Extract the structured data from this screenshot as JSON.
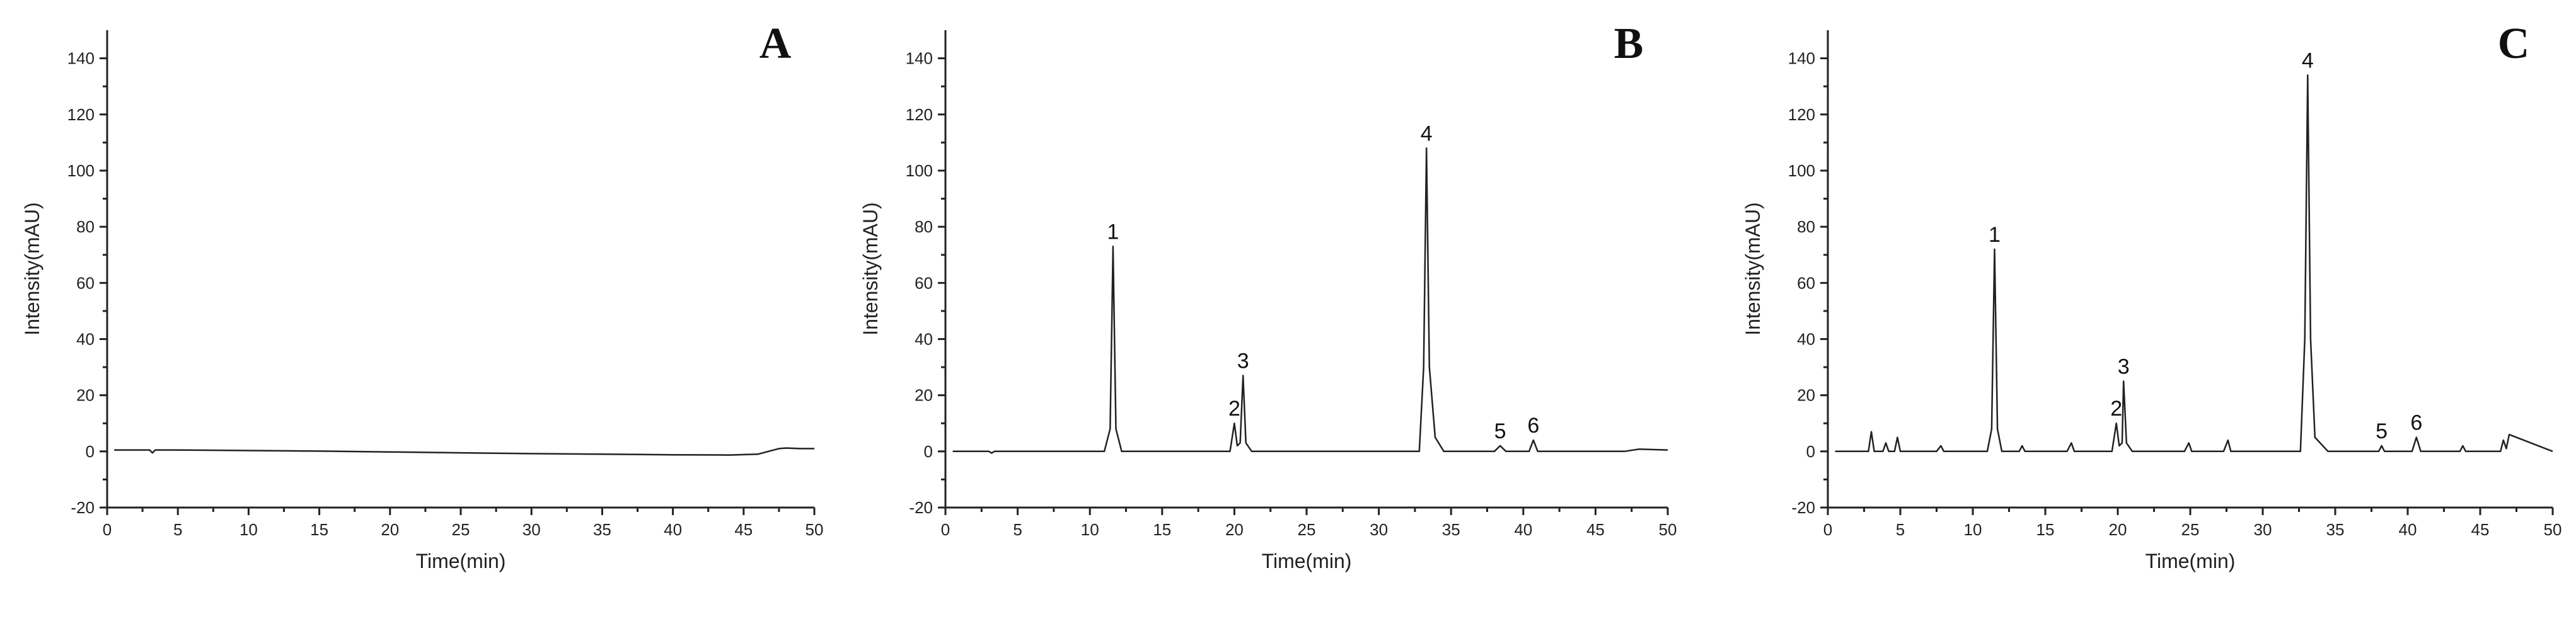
{
  "chart_data": [
    {
      "type": "line",
      "panel_label": "A",
      "xlabel": "Time(min)",
      "ylabel": "Intensity(mAU)",
      "xlim": [
        0,
        50
      ],
      "ylim": [
        -20,
        150
      ],
      "xticks": [
        0,
        5,
        10,
        15,
        20,
        25,
        30,
        35,
        40,
        45,
        50
      ],
      "yticks": [
        -20,
        0,
        20,
        40,
        60,
        80,
        100,
        120,
        140
      ],
      "grid": false,
      "peak_labels": [],
      "series": [
        {
          "x": [
            0.5,
            3.0,
            3.2,
            3.4,
            5,
            10,
            15,
            20,
            25,
            30,
            35,
            40,
            44,
            46,
            47.5,
            48,
            49,
            50
          ],
          "values": [
            0.5,
            0.5,
            -0.5,
            0.5,
            0.5,
            0.3,
            0.1,
            -0.2,
            -0.5,
            -0.8,
            -1.0,
            -1.2,
            -1.3,
            -1.0,
            1.0,
            1.2,
            1.0,
            1.0
          ]
        }
      ]
    },
    {
      "type": "line",
      "panel_label": "B",
      "xlabel": "Time(min)",
      "ylabel": "Intensity(mAU)",
      "xlim": [
        0,
        50
      ],
      "ylim": [
        -20,
        150
      ],
      "xticks": [
        0,
        5,
        10,
        15,
        20,
        25,
        30,
        35,
        40,
        45,
        50
      ],
      "yticks": [
        -20,
        0,
        20,
        40,
        60,
        80,
        100,
        120,
        140
      ],
      "grid": false,
      "peak_labels": [
        {
          "text": "1",
          "x": 11.6,
          "y": 73
        },
        {
          "text": "2",
          "x": 20.0,
          "y": 10
        },
        {
          "text": "3",
          "x": 20.6,
          "y": 27
        },
        {
          "text": "4",
          "x": 33.3,
          "y": 108
        },
        {
          "text": "5",
          "x": 38.4,
          "y": 2
        },
        {
          "text": "6",
          "x": 40.7,
          "y": 4
        }
      ],
      "series": [
        {
          "x": [
            0.5,
            3.0,
            3.2,
            3.4,
            11.0,
            11.4,
            11.6,
            11.8,
            12.2,
            19.7,
            20.0,
            20.2,
            20.4,
            20.6,
            20.8,
            21.2,
            32.8,
            33.1,
            33.3,
            33.5,
            33.9,
            34.5,
            38.0,
            38.4,
            38.8,
            40.4,
            40.7,
            41.0,
            47.0,
            48.0,
            50.0
          ],
          "values": [
            0,
            0,
            -0.6,
            0,
            0,
            8,
            73,
            8,
            0,
            0,
            10,
            2,
            3,
            27,
            3,
            0,
            0,
            30,
            108,
            30,
            5,
            0,
            0,
            2,
            0,
            0,
            4,
            0,
            0,
            0.8,
            0.5
          ]
        }
      ]
    },
    {
      "type": "line",
      "panel_label": "C",
      "xlabel": "Time(min)",
      "ylabel": "Intensity(mAU)",
      "xlim": [
        0,
        50
      ],
      "ylim": [
        -20,
        150
      ],
      "xticks": [
        0,
        5,
        10,
        15,
        20,
        25,
        30,
        35,
        40,
        45,
        50
      ],
      "yticks": [
        -20,
        0,
        20,
        40,
        60,
        80,
        100,
        120,
        140
      ],
      "grid": false,
      "peak_labels": [
        {
          "text": "1",
          "x": 11.5,
          "y": 72
        },
        {
          "text": "2",
          "x": 19.9,
          "y": 10
        },
        {
          "text": "3",
          "x": 20.4,
          "y": 25
        },
        {
          "text": "4",
          "x": 33.1,
          "y": 134
        },
        {
          "text": "5",
          "x": 38.2,
          "y": 2
        },
        {
          "text": "6",
          "x": 40.6,
          "y": 5
        }
      ],
      "series": [
        {
          "x": [
            0.5,
            2.8,
            3.0,
            3.2,
            3.8,
            4.0,
            4.2,
            4.6,
            4.8,
            5.0,
            7.5,
            7.8,
            8.0,
            11.0,
            11.3,
            11.5,
            11.7,
            12.0,
            13.2,
            13.4,
            13.6,
            16.5,
            16.8,
            17.0,
            19.6,
            19.9,
            20.1,
            20.3,
            20.4,
            20.6,
            21.0,
            24.6,
            24.9,
            25.1,
            27.3,
            27.6,
            27.8,
            32.6,
            32.9,
            33.1,
            33.3,
            33.6,
            34.5,
            38.0,
            38.2,
            38.4,
            40.3,
            40.6,
            40.9,
            43.6,
            43.8,
            44.0,
            46.4,
            46.6,
            46.8,
            47.0,
            50.0
          ],
          "values": [
            0,
            0,
            7,
            0,
            0,
            3,
            0,
            0,
            5,
            0,
            0,
            2,
            0,
            0,
            8,
            72,
            8,
            0,
            0,
            2,
            0,
            0,
            3,
            0,
            0,
            10,
            2,
            3,
            25,
            3,
            0,
            0,
            3,
            0,
            0,
            4,
            0,
            0,
            40,
            134,
            40,
            5,
            0,
            0,
            2,
            0,
            0,
            5,
            0,
            0,
            2,
            0,
            0,
            4,
            1,
            6,
            0
          ]
        }
      ]
    }
  ]
}
